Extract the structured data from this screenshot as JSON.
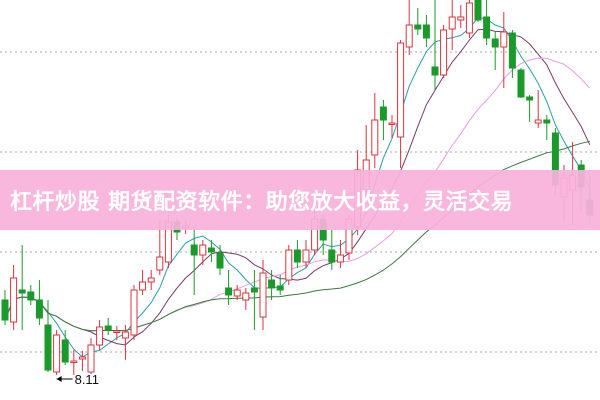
{
  "chart_data": {
    "type": "candlestick",
    "title": "",
    "xlabel": "",
    "ylabel": "",
    "ylim": [
      7.86,
      11.86
    ],
    "grid": {
      "horizontal": true,
      "style": "dotted",
      "levels": [
        8.34,
        9.34,
        10.34,
        11.34
      ]
    },
    "colors": {
      "up": "#d9333f",
      "down": "#1a9a2a",
      "ma_fast": "#2aa0a8",
      "ma_mid": "#7a3a6a",
      "ma_slow": "#e59ee0",
      "ma_long": "#3c7a3c",
      "grid": "#aaaaaa"
    },
    "candle_fields": [
      "open",
      "high",
      "low",
      "close"
    ],
    "candles": [
      [
        8.86,
        8.96,
        8.61,
        8.66
      ],
      [
        8.64,
        9.21,
        8.56,
        9.08
      ],
      [
        8.96,
        9.41,
        8.56,
        8.93
      ],
      [
        8.94,
        9.01,
        8.81,
        8.86
      ],
      [
        8.86,
        9.06,
        8.61,
        8.68
      ],
      [
        8.61,
        8.86,
        8.14,
        8.16
      ],
      [
        8.14,
        8.56,
        8.11,
        8.51
      ],
      [
        8.46,
        8.56,
        8.21,
        8.24
      ],
      [
        8.24,
        8.36,
        8.11,
        8.25
      ],
      [
        8.27,
        8.35,
        8.15,
        8.29
      ],
      [
        8.14,
        8.48,
        8.12,
        8.41
      ],
      [
        8.41,
        8.66,
        8.36,
        8.59
      ],
      [
        8.6,
        8.68,
        8.51,
        8.56
      ],
      [
        8.54,
        8.6,
        8.46,
        8.55
      ],
      [
        8.48,
        8.61,
        8.26,
        8.54
      ],
      [
        8.51,
        9.01,
        8.46,
        8.96
      ],
      [
        8.96,
        9.16,
        8.91,
        9.04
      ],
      [
        9.04,
        9.16,
        8.96,
        9.08
      ],
      [
        9.16,
        9.66,
        9.11,
        9.29
      ],
      [
        9.24,
        9.71,
        9.18,
        9.64
      ],
      [
        9.64,
        9.68,
        9.46,
        9.54
      ],
      [
        9.58,
        9.66,
        9.52,
        9.6
      ],
      [
        9.41,
        9.56,
        8.91,
        9.31
      ],
      [
        9.31,
        9.46,
        9.21,
        9.41
      ],
      [
        9.38,
        9.46,
        9.24,
        9.34
      ],
      [
        9.33,
        9.41,
        9.11,
        9.18
      ],
      [
        8.98,
        9.16,
        8.81,
        8.91
      ],
      [
        8.9,
        9.01,
        8.86,
        8.96
      ],
      [
        8.86,
        8.98,
        8.76,
        8.93
      ],
      [
        8.98,
        9.16,
        8.56,
        8.94
      ],
      [
        8.69,
        9.26,
        8.56,
        9.13
      ],
      [
        9.06,
        9.16,
        8.86,
        8.98
      ],
      [
        9.0,
        9.11,
        8.91,
        8.96
      ],
      [
        9.06,
        9.41,
        9.01,
        9.36
      ],
      [
        9.36,
        9.46,
        9.18,
        9.24
      ],
      [
        9.24,
        9.46,
        9.18,
        9.36
      ],
      [
        9.36,
        9.76,
        9.31,
        9.67
      ],
      [
        9.67,
        9.71,
        9.31,
        9.46
      ],
      [
        9.36,
        9.56,
        9.16,
        9.24
      ],
      [
        9.24,
        9.46,
        9.18,
        9.31
      ],
      [
        9.33,
        9.71,
        9.26,
        9.67
      ],
      [
        9.59,
        10.36,
        9.51,
        10.16
      ],
      [
        9.96,
        10.61,
        9.91,
        10.26
      ],
      [
        10.31,
        10.93,
        10.18,
        10.66
      ],
      [
        10.79,
        10.86,
        10.46,
        10.66
      ],
      [
        10.63,
        10.71,
        10.48,
        10.63
      ],
      [
        10.49,
        11.46,
        10.18,
        11.43
      ],
      [
        11.39,
        11.86,
        11.31,
        11.61
      ],
      [
        11.61,
        11.78,
        11.51,
        11.57
      ],
      [
        11.61,
        11.71,
        11.39,
        11.48
      ],
      [
        11.19,
        11.86,
        10.96,
        11.11
      ],
      [
        11.11,
        11.61,
        11.08,
        11.56
      ],
      [
        11.57,
        11.86,
        11.36,
        11.69
      ],
      [
        11.66,
        11.81,
        11.58,
        11.69
      ],
      [
        11.53,
        11.86,
        11.48,
        11.83
      ],
      [
        11.86,
        11.86,
        11.64,
        11.66
      ],
      [
        11.69,
        11.86,
        11.41,
        11.48
      ],
      [
        11.47,
        11.54,
        11.16,
        11.39
      ],
      [
        11.39,
        11.74,
        10.98,
        11.54
      ],
      [
        11.53,
        11.56,
        11.08,
        11.18
      ],
      [
        11.16,
        11.18,
        10.88,
        10.89
      ],
      [
        10.89,
        10.91,
        10.64,
        10.86
      ],
      [
        10.63,
        10.96,
        10.58,
        10.66
      ],
      [
        10.66,
        10.71,
        10.46,
        10.63
      ],
      [
        10.53,
        10.58,
        9.91,
        10.01
      ],
      [
        9.89,
        10.21,
        9.66,
        10.08
      ],
      [
        9.96,
        10.44,
        9.61,
        10.11
      ],
      [
        10.21,
        10.26,
        9.76,
        9.99
      ],
      [
        9.86,
        10.11,
        9.61,
        9.71
      ]
    ],
    "annotations": [
      {
        "text": "8.11",
        "price": 8.11,
        "candle_index": 6,
        "arrow": "left"
      }
    ]
  },
  "banner": {
    "text": "杠杆炒股 期货配资软件：助您放大收益，灵活交易",
    "color": "#f9b2da"
  }
}
